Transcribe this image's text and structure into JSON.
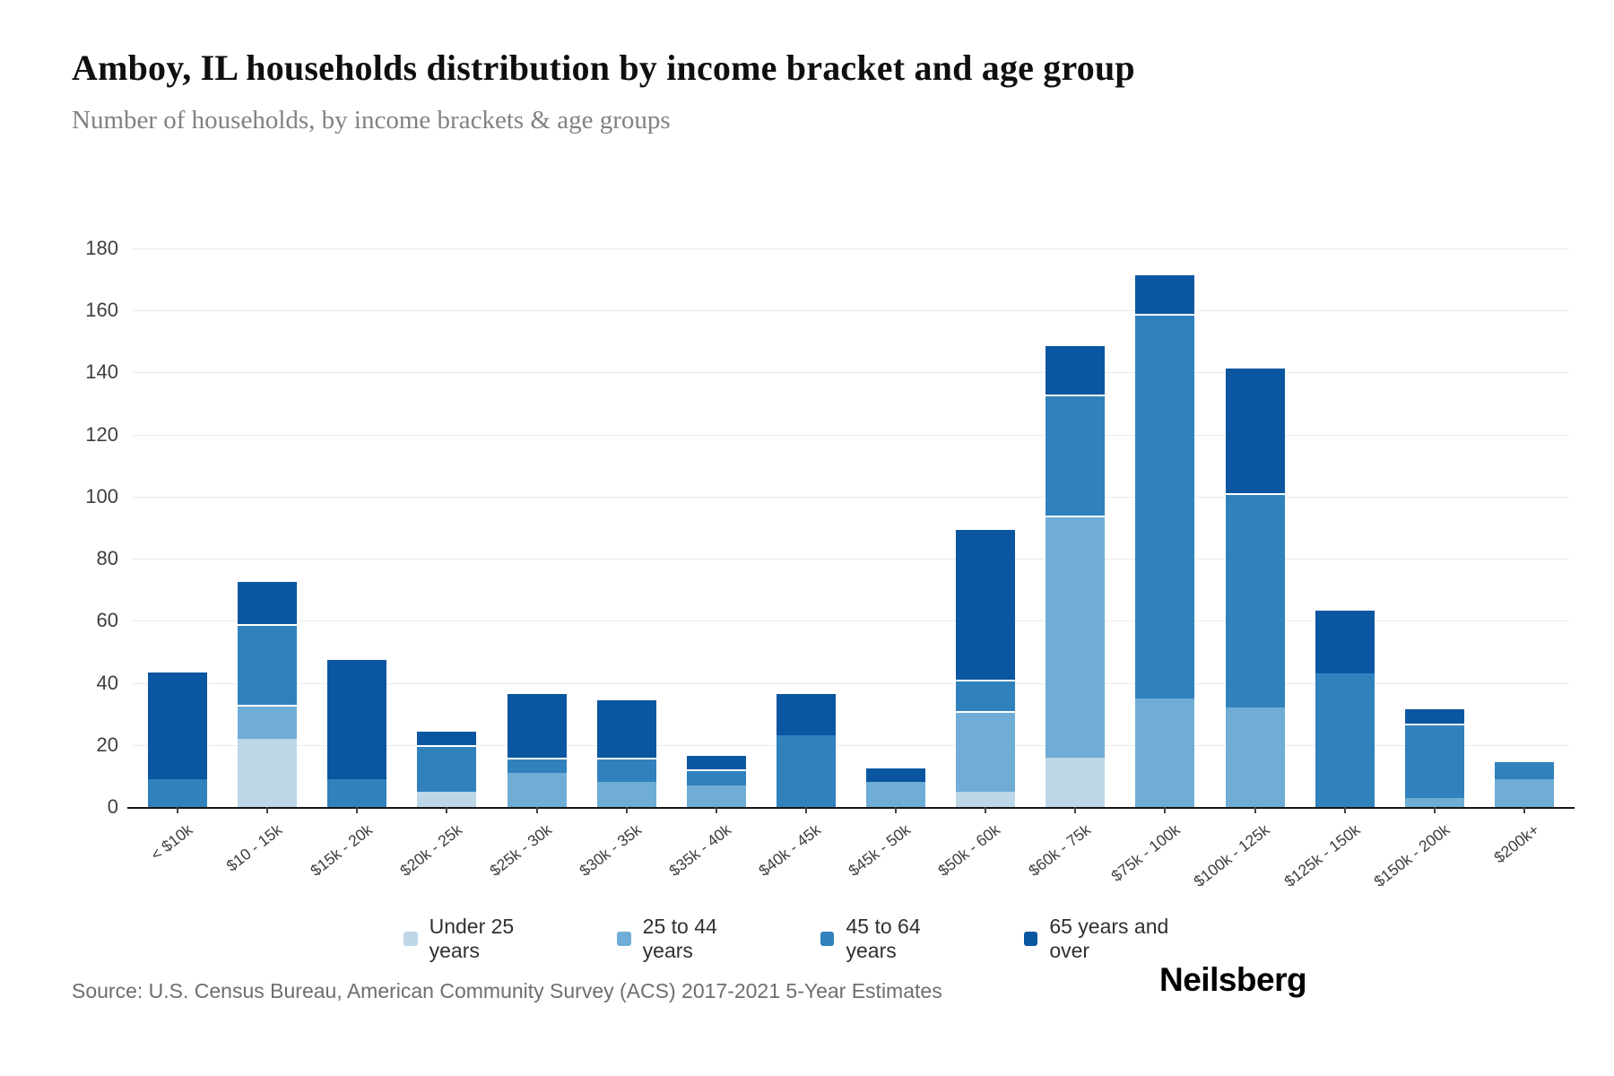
{
  "header": {
    "title": "Amboy, IL households distribution by income bracket and age group",
    "subtitle": "Number of households, by income brackets & age groups"
  },
  "chart_data": {
    "type": "bar",
    "stacked": true,
    "title": "Amboy, IL households distribution by income bracket and age group",
    "xlabel": "",
    "ylabel": "",
    "ylim": [
      0,
      180
    ],
    "yticks": [
      0,
      20,
      40,
      60,
      80,
      100,
      120,
      140,
      160,
      180
    ],
    "grid": true,
    "legend_position": "bottom",
    "categories": [
      "< $10k",
      "$10 - 15k",
      "$15k - 20k",
      "$20k - 25k",
      "$25k - 30k",
      "$30k - 35k",
      "$35k - 40k",
      "$40k - 45k",
      "$45k - 50k",
      "$50k - 60k",
      "$60k - 75k",
      "$75k - 100k",
      "$100k - 125k",
      "$125k - 150k",
      "$150k - 200k",
      "$200k+"
    ],
    "series": [
      {
        "name": "Under 25 years",
        "color": "#bdd7e8",
        "values": [
          0,
          22,
          0,
          5,
          0,
          0,
          0,
          0,
          0,
          5,
          16,
          0,
          0,
          0,
          0,
          0
        ]
      },
      {
        "name": "25 to 44 years",
        "color": "#6fadd6",
        "values": [
          0,
          11,
          0,
          0,
          11,
          8,
          7,
          0,
          8,
          26,
          78,
          35,
          32,
          0,
          3,
          9
        ]
      },
      {
        "name": "45 to 64 years",
        "color": "#3181bd",
        "values": [
          9,
          26,
          9,
          15,
          5,
          8,
          5,
          23,
          0,
          10,
          39,
          124,
          69,
          43,
          24,
          6
        ]
      },
      {
        "name": "65 years and over",
        "color": "#0b56a0",
        "values": [
          35,
          14,
          39,
          5,
          21,
          19,
          5,
          14,
          5,
          49,
          16,
          13,
          41,
          21,
          5,
          0
        ]
      }
    ],
    "totals": [
      44,
      73,
      48,
      25,
      37,
      35,
      17,
      37,
      13,
      90,
      149,
      172,
      142,
      64,
      32,
      15
    ]
  },
  "footer": {
    "source": "Source: U.S. Census Bureau, American Community Survey (ACS) 2017-2021 5-Year Estimates",
    "brand": "Neilsberg"
  }
}
